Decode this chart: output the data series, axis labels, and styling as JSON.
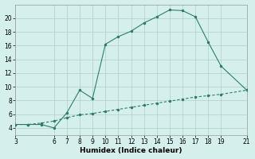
{
  "xlabel": "Humidex (Indice chaleur)",
  "line1_x": [
    3,
    4,
    5,
    6,
    7,
    8,
    9,
    10,
    11,
    12,
    13,
    14,
    15,
    16,
    17,
    18,
    19,
    21
  ],
  "line1_y": [
    4.5,
    4.5,
    4.5,
    4.0,
    6.2,
    9.5,
    8.3,
    16.2,
    17.3,
    18.1,
    19.3,
    20.2,
    21.2,
    21.1,
    20.2,
    16.5,
    13.0,
    9.5
  ],
  "line2_x": [
    3,
    4,
    5,
    6,
    7,
    8,
    9,
    10,
    11,
    12,
    13,
    14,
    15,
    16,
    17,
    18,
    19,
    21
  ],
  "line2_y": [
    4.5,
    4.5,
    4.7,
    5.0,
    5.5,
    5.9,
    6.1,
    6.4,
    6.7,
    7.0,
    7.3,
    7.6,
    7.9,
    8.2,
    8.5,
    8.7,
    8.9,
    9.5
  ],
  "line_color": "#2d7d6e",
  "bg_color": "#d5f0ec",
  "grid_color": "#b0cdc8",
  "xlim": [
    3,
    21
  ],
  "ylim": [
    3,
    22
  ],
  "xticks": [
    3,
    6,
    7,
    8,
    9,
    10,
    11,
    12,
    13,
    14,
    15,
    16,
    17,
    18,
    19,
    21
  ],
  "yticks": [
    4,
    6,
    8,
    10,
    12,
    14,
    16,
    18,
    20
  ],
  "tick_fontsize": 5.5,
  "xlabel_fontsize": 6.5,
  "markersize": 3,
  "linewidth": 0.8
}
